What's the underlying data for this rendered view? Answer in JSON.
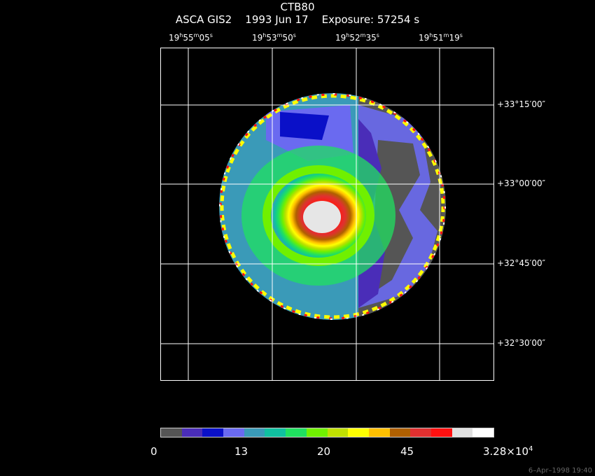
{
  "header": {
    "object": "CTB80",
    "line2": "ASCA GIS2    1993 Jun 17    Exposure: 57254 s"
  },
  "ra_labels": [
    {
      "h": "19",
      "m": "55",
      "s": "05"
    },
    {
      "h": "19",
      "m": "53",
      "s": "50"
    },
    {
      "h": "19",
      "m": "52",
      "s": "35"
    },
    {
      "h": "19",
      "m": "51",
      "s": "19"
    }
  ],
  "dec_labels": [
    "+33°15′00″",
    "+33°00′00″",
    "+32°45′00″",
    "+32°30′00″"
  ],
  "colorbar": {
    "colors": [
      "#555555",
      "#4a2db8",
      "#0a10c8",
      "#6a6af0",
      "#3a9ab8",
      "#10c0a0",
      "#20e060",
      "#70f000",
      "#c0e000",
      "#ffff00",
      "#ffc000",
      "#b06000",
      "#e03030",
      "#ff1010",
      "#e0e0e0",
      "#ffffff"
    ],
    "labels": [
      "0",
      "13",
      "20",
      "45"
    ],
    "max_label_base": "3.28×10",
    "max_label_exp": "4"
  },
  "footer": {
    "stamp": "6–Apr–1998 19:40"
  }
}
